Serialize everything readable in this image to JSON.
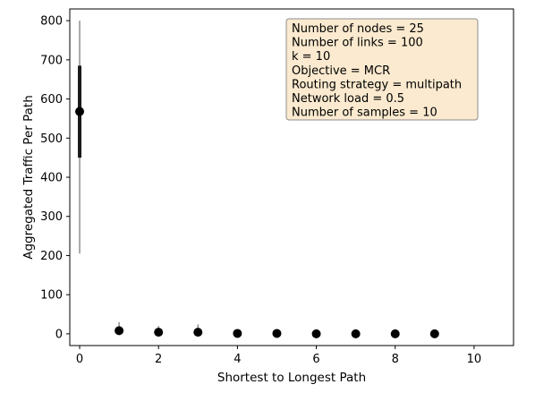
{
  "chart_data": {
    "type": "scatter",
    "title": "",
    "xlabel": "Shortest to Longest Path",
    "ylabel": "Aggregated Traffic Per Path",
    "xlim": [
      -0.25,
      11
    ],
    "ylim": [
      -30,
      830
    ],
    "xticks": [
      0,
      2,
      4,
      6,
      8,
      10
    ],
    "yticks": [
      0,
      100,
      200,
      300,
      400,
      500,
      600,
      700,
      800
    ],
    "grid": false,
    "marker_color": "#000000",
    "whisker_color": "#808080",
    "box_color": "#1a1a1a",
    "annotation_bg": "#fbeacf",
    "points": [
      {
        "x": 0,
        "y": 568,
        "whisker": [
          205,
          800
        ],
        "box": [
          450,
          685
        ]
      },
      {
        "x": 1,
        "y": 8,
        "whisker": [
          0,
          30
        ],
        "box": [
          3,
          14
        ]
      },
      {
        "x": 2,
        "y": 4,
        "whisker": [
          0,
          20
        ],
        "box": [
          1,
          8
        ]
      },
      {
        "x": 3,
        "y": 4,
        "whisker": [
          0,
          24
        ],
        "box": [
          1,
          8
        ]
      },
      {
        "x": 4,
        "y": 1
      },
      {
        "x": 5,
        "y": 1
      },
      {
        "x": 6,
        "y": 0
      },
      {
        "x": 7,
        "y": 0
      },
      {
        "x": 8,
        "y": 0
      },
      {
        "x": 9,
        "y": 0
      }
    ],
    "annotation": [
      "Number of nodes = 25",
      "Number of links = 100",
      "k = 10",
      "Objective = MCR",
      "Routing strategy = multipath",
      "Network load = 0.5",
      "Number of samples = 10"
    ],
    "annotation_placement": "top-right"
  }
}
